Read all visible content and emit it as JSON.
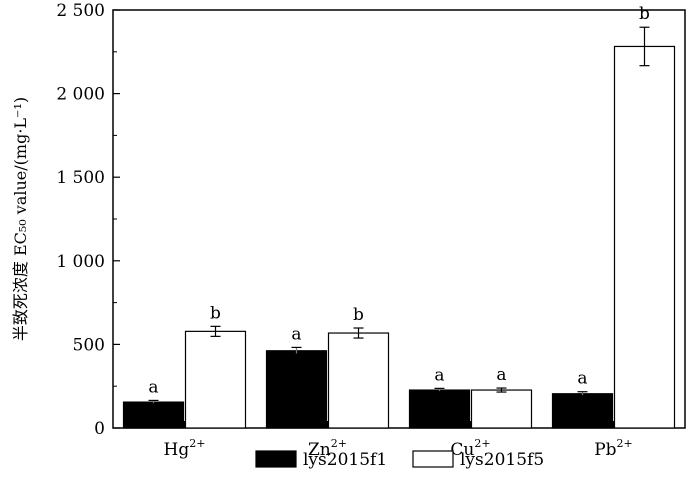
{
  "chart_data": {
    "type": "bar",
    "categories": [
      "Hg",
      "Zn",
      "Cu",
      "Pb"
    ],
    "category_superscripts": [
      "2+",
      "2+",
      "2+",
      "2+"
    ],
    "series": [
      {
        "name": "lys2015f1",
        "color": "#000000",
        "values": [
          155,
          462,
          227,
          205
        ],
        "errors": [
          10,
          20,
          10,
          12
        ],
        "significance": [
          "a",
          "a",
          "a",
          "a"
        ]
      },
      {
        "name": "lys2015f5",
        "color": "#ffffff",
        "values": [
          578,
          568,
          227,
          2282
        ],
        "errors": [
          30,
          30,
          12,
          115
        ],
        "significance": [
          "b",
          "b",
          "a",
          "b"
        ]
      }
    ],
    "ylabel": "半致死浓度 EC₅₀ value/(mg·L⁻¹)",
    "ylim": [
      0,
      2500
    ],
    "yticks": [
      0,
      500,
      1000,
      1500,
      2000,
      2500
    ],
    "ytick_labels": [
      "0",
      "500",
      "1 000",
      "1 500",
      "2 000",
      "2 500"
    ],
    "legend_position": "bottom",
    "grid": false
  }
}
